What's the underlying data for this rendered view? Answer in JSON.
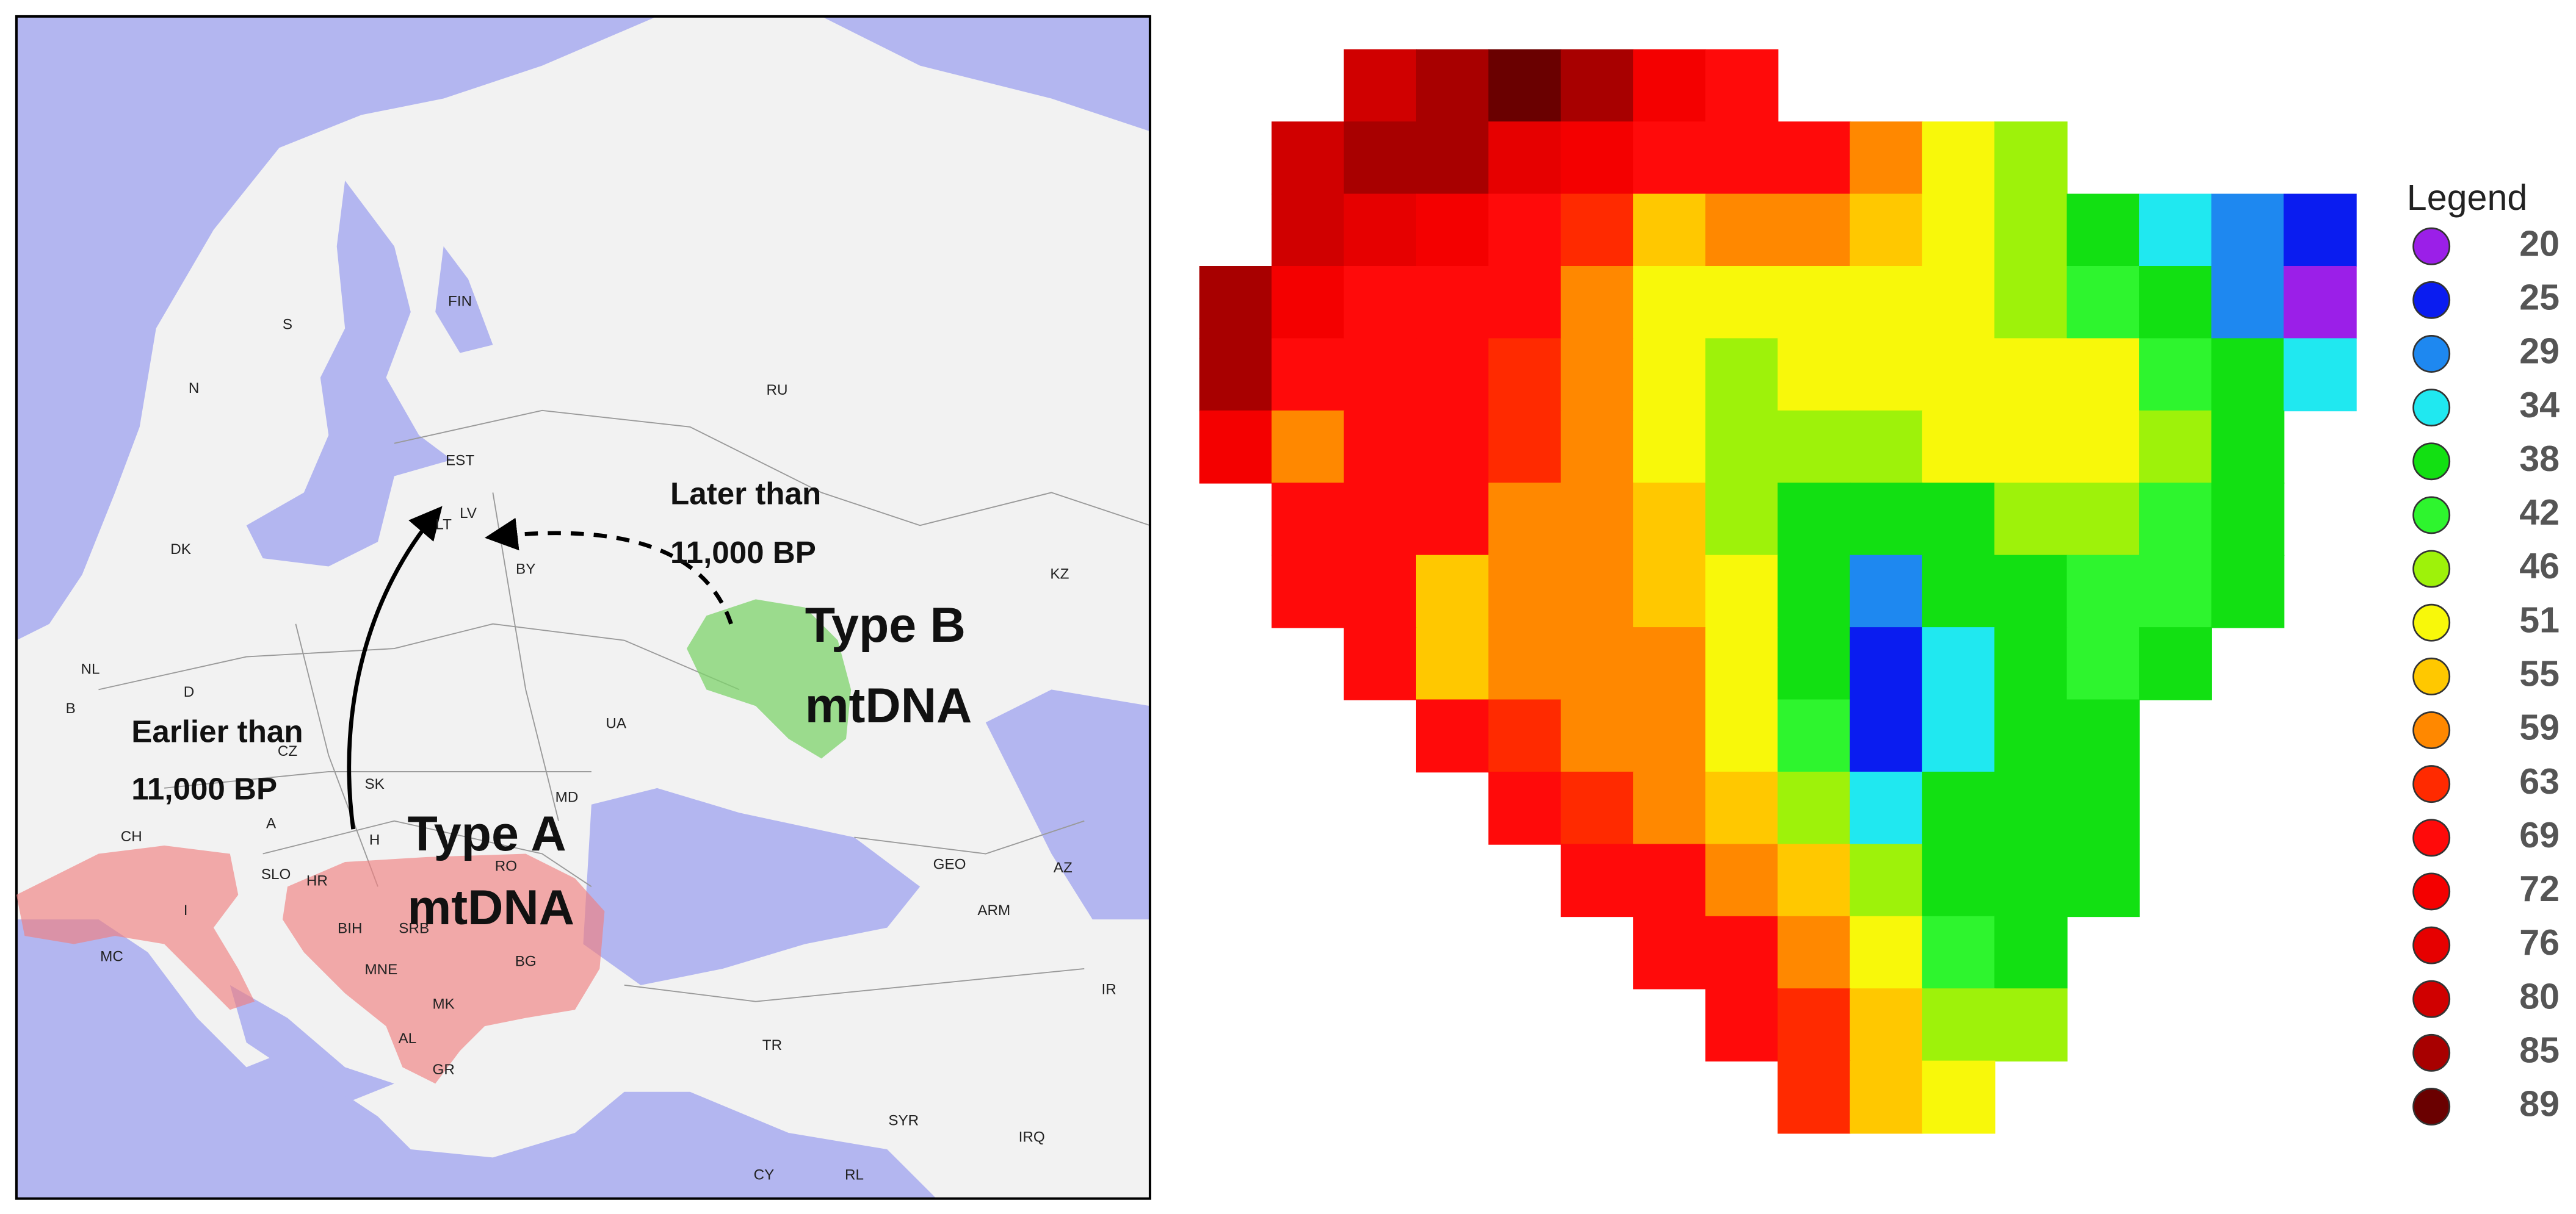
{
  "map": {
    "labels": [
      "N",
      "S",
      "FIN",
      "RU",
      "EST",
      "LV",
      "LT",
      "DK",
      "BY",
      "KZ",
      "NL",
      "D",
      "B",
      "UA",
      "CZ",
      "MD",
      "SK",
      "CH",
      "A",
      "H",
      "SLO",
      "RO",
      "HR",
      "BIH",
      "SRB",
      "BG",
      "MNE",
      "MK",
      "AL",
      "GR",
      "I",
      "MC",
      "GEO",
      "AZ",
      "ARM",
      "IR",
      "TR",
      "SYR",
      "IRQ",
      "CY",
      "RL"
    ],
    "annotations": {
      "earlier": [
        "Earlier than",
        "11,000 BP"
      ],
      "later": [
        "Later than",
        "11,000 BP"
      ],
      "type_a": [
        "Type A",
        "mtDNA"
      ],
      "type_b": [
        "Type B",
        "mtDNA"
      ]
    }
  },
  "legend": {
    "title": "Legend",
    "items": [
      {
        "value": 20,
        "color": "#9b1fe8"
      },
      {
        "value": 25,
        "color": "#0a1cf0"
      },
      {
        "value": 29,
        "color": "#1e88f0"
      },
      {
        "value": 34,
        "color": "#20e8f0"
      },
      {
        "value": 38,
        "color": "#12e012"
      },
      {
        "value": 42,
        "color": "#2ef52e"
      },
      {
        "value": 46,
        "color": "#9ef20a"
      },
      {
        "value": 51,
        "color": "#f8f80a"
      },
      {
        "value": 55,
        "color": "#ffc800"
      },
      {
        "value": 59,
        "color": "#ff8800"
      },
      {
        "value": 63,
        "color": "#ff2a00"
      },
      {
        "value": 69,
        "color": "#ff0a0a"
      },
      {
        "value": 72,
        "color": "#f40000"
      },
      {
        "value": 76,
        "color": "#e60000"
      },
      {
        "value": 80,
        "color": "#d00000"
      },
      {
        "value": 85,
        "color": "#a80000"
      },
      {
        "value": 89,
        "color": "#6a0000"
      }
    ]
  },
  "heatmap": {
    "rows": [
      [
        null,
        null,
        80,
        85,
        89,
        85,
        72,
        69,
        null,
        null,
        null,
        null,
        null,
        null,
        null,
        null
      ],
      [
        null,
        80,
        85,
        85,
        76,
        72,
        69,
        69,
        69,
        59,
        51,
        46,
        null,
        null,
        null,
        null
      ],
      [
        null,
        80,
        76,
        72,
        69,
        63,
        55,
        59,
        59,
        55,
        51,
        46,
        38,
        34,
        29,
        25
      ],
      [
        85,
        72,
        69,
        69,
        69,
        59,
        51,
        51,
        51,
        51,
        51,
        46,
        42,
        38,
        29,
        20
      ],
      [
        85,
        69,
        69,
        69,
        63,
        59,
        51,
        46,
        51,
        51,
        51,
        51,
        51,
        42,
        38,
        34
      ],
      [
        72,
        59,
        69,
        69,
        63,
        59,
        51,
        46,
        46,
        46,
        51,
        51,
        51,
        46,
        38,
        null
      ],
      [
        null,
        69,
        69,
        69,
        59,
        59,
        55,
        46,
        38,
        38,
        38,
        46,
        46,
        42,
        38,
        null
      ],
      [
        null,
        69,
        69,
        55,
        59,
        59,
        55,
        51,
        38,
        29,
        38,
        38,
        42,
        42,
        38,
        null
      ],
      [
        null,
        null,
        69,
        55,
        59,
        59,
        59,
        51,
        38,
        25,
        34,
        38,
        42,
        38,
        null,
        null
      ],
      [
        null,
        null,
        null,
        69,
        63,
        59,
        59,
        51,
        42,
        25,
        34,
        38,
        38,
        null,
        null,
        null
      ],
      [
        null,
        null,
        null,
        null,
        69,
        63,
        59,
        55,
        46,
        34,
        38,
        38,
        38,
        null,
        null,
        null
      ],
      [
        null,
        null,
        null,
        null,
        null,
        69,
        69,
        59,
        55,
        46,
        38,
        38,
        38,
        null,
        null,
        null
      ],
      [
        null,
        null,
        null,
        null,
        null,
        null,
        69,
        69,
        59,
        51,
        42,
        38,
        null,
        null,
        null,
        null
      ],
      [
        null,
        null,
        null,
        null,
        null,
        null,
        null,
        69,
        63,
        55,
        46,
        46,
        null,
        null,
        null,
        null
      ],
      [
        null,
        null,
        null,
        null,
        null,
        null,
        null,
        null,
        63,
        55,
        51,
        null,
        null,
        null,
        null,
        null
      ]
    ]
  }
}
